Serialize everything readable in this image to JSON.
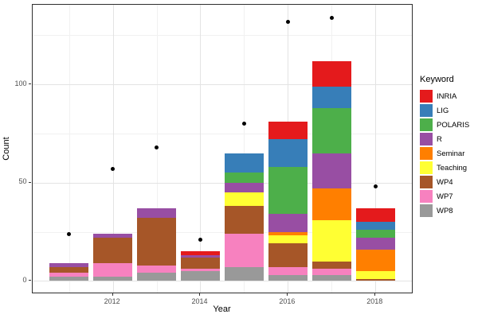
{
  "chart_data": {
    "type": "bar",
    "subtype": "stacked-bars-with-scatter-points",
    "title": "",
    "xlabel": "Year",
    "ylabel": "Count",
    "categories": [
      2011,
      2012,
      2013,
      2014,
      2015,
      2016,
      2017,
      2018
    ],
    "series": [
      {
        "name": "WP8",
        "color": "#999999",
        "values": [
          2,
          2,
          4,
          5,
          7,
          3,
          3,
          0
        ]
      },
      {
        "name": "WP7",
        "color": "#f781bf",
        "values": [
          2,
          7,
          4,
          1,
          17,
          4,
          3,
          0
        ]
      },
      {
        "name": "WP4",
        "color": "#a65628",
        "values": [
          3,
          13,
          24,
          6,
          14,
          12,
          4,
          1
        ]
      },
      {
        "name": "Teaching",
        "color": "#ffff33",
        "values": [
          0,
          0,
          0,
          0,
          7,
          4,
          21,
          4
        ]
      },
      {
        "name": "Seminar",
        "color": "#ff7f00",
        "values": [
          0,
          0,
          0,
          0,
          0,
          2,
          16,
          11
        ]
      },
      {
        "name": "R",
        "color": "#984ea3",
        "values": [
          2,
          2,
          5,
          1,
          5,
          9,
          18,
          6
        ]
      },
      {
        "name": "POLARIS",
        "color": "#4daf4a",
        "values": [
          0,
          0,
          0,
          0,
          5,
          24,
          23,
          4
        ]
      },
      {
        "name": "LIG",
        "color": "#377eb8",
        "values": [
          0,
          0,
          0,
          0,
          10,
          14,
          11,
          4
        ]
      },
      {
        "name": "INRIA",
        "color": "#e41a1c",
        "values": [
          0,
          0,
          0,
          2,
          0,
          9,
          13,
          7
        ]
      }
    ],
    "points": {
      "color": "#000000",
      "values": [
        24,
        57,
        68,
        21,
        80,
        132,
        134,
        48
      ]
    },
    "bar_totals": [
      9,
      24,
      37,
      15,
      65,
      81,
      112,
      37
    ],
    "x_major_breaks": [
      2012,
      2014,
      2016,
      2018
    ],
    "x_minor_breaks": [
      2011,
      2013,
      2015,
      2017
    ],
    "y_major_breaks": [
      0,
      50,
      100
    ],
    "y_minor_breaks": [
      25,
      75,
      125
    ],
    "xlim": [
      2010.16,
      2018.86
    ],
    "ylim": [
      -6.75,
      140.75
    ],
    "bar_width_years": 0.9,
    "grid": "on",
    "legend_position": "right",
    "legend": {
      "title": "Keyword",
      "items": [
        {
          "label": "INRIA",
          "color": "#e41a1c"
        },
        {
          "label": "LIG",
          "color": "#377eb8"
        },
        {
          "label": "POLARIS",
          "color": "#4daf4a"
        },
        {
          "label": "R",
          "color": "#984ea3"
        },
        {
          "label": "Seminar",
          "color": "#ff7f00"
        },
        {
          "label": "Teaching",
          "color": "#ffff33"
        },
        {
          "label": "WP4",
          "color": "#a65628"
        },
        {
          "label": "WP7",
          "color": "#f781bf"
        },
        {
          "label": "WP8",
          "color": "#999999"
        }
      ]
    }
  }
}
